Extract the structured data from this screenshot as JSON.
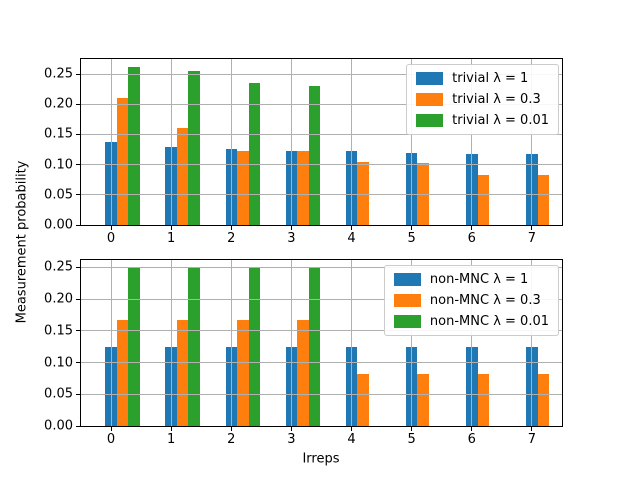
{
  "figure": {
    "ylabel": "Measurement probability",
    "xlabel": "Irreps"
  },
  "colors": {
    "series_blue": "#1f77b4",
    "series_orange": "#ff7f0e",
    "series_green": "#2ca02c",
    "grid": "#b0b0b0",
    "spine": "#000000",
    "legend_border": "#cccccc",
    "background": "#ffffff"
  },
  "chart_data": [
    {
      "type": "bar",
      "subplot": "top",
      "categories": [
        "0",
        "1",
        "2",
        "3",
        "4",
        "5",
        "6",
        "7"
      ],
      "xlabel": "",
      "ylabel": "Measurement probability",
      "ylim": [
        0,
        0.2751
      ],
      "yticks": [
        0,
        0.05,
        0.1,
        0.15,
        0.2,
        0.25
      ],
      "grid": true,
      "legend_position": "upper right",
      "series": [
        {
          "name": "trivial λ = 1",
          "color": "#1f77b4",
          "values": [
            0.138,
            0.129,
            0.126,
            0.123,
            0.122,
            0.12,
            0.118,
            0.117
          ]
        },
        {
          "name": "trivial λ = 0.3",
          "color": "#ff7f0e",
          "values": [
            0.211,
            0.16,
            0.122,
            0.122,
            0.104,
            0.103,
            0.083,
            0.083
          ]
        },
        {
          "name": "trivial λ = 0.01",
          "color": "#2ca02c",
          "values": [
            0.262,
            0.255,
            0.236,
            0.231,
            0,
            0,
            0,
            0
          ]
        }
      ]
    },
    {
      "type": "bar",
      "subplot": "bottom",
      "categories": [
        "0",
        "1",
        "2",
        "3",
        "4",
        "5",
        "6",
        "7"
      ],
      "xlabel": "Irreps",
      "ylabel": "Measurement probability",
      "ylim": [
        0,
        0.2615
      ],
      "yticks": [
        0,
        0.05,
        0.1,
        0.15,
        0.2,
        0.25
      ],
      "grid": true,
      "legend_position": "upper right",
      "series": [
        {
          "name": "non-MNC λ = 1",
          "color": "#1f77b4",
          "values": [
            0.125,
            0.125,
            0.125,
            0.125,
            0.125,
            0.125,
            0.125,
            0.125
          ]
        },
        {
          "name": "non-MNC λ = 0.3",
          "color": "#ff7f0e",
          "values": [
            0.167,
            0.167,
            0.167,
            0.167,
            0.082,
            0.082,
            0.082,
            0.082
          ]
        },
        {
          "name": "non-MNC λ = 0.01",
          "color": "#2ca02c",
          "values": [
            0.249,
            0.249,
            0.249,
            0.249,
            0,
            0,
            0,
            0
          ]
        }
      ]
    }
  ]
}
